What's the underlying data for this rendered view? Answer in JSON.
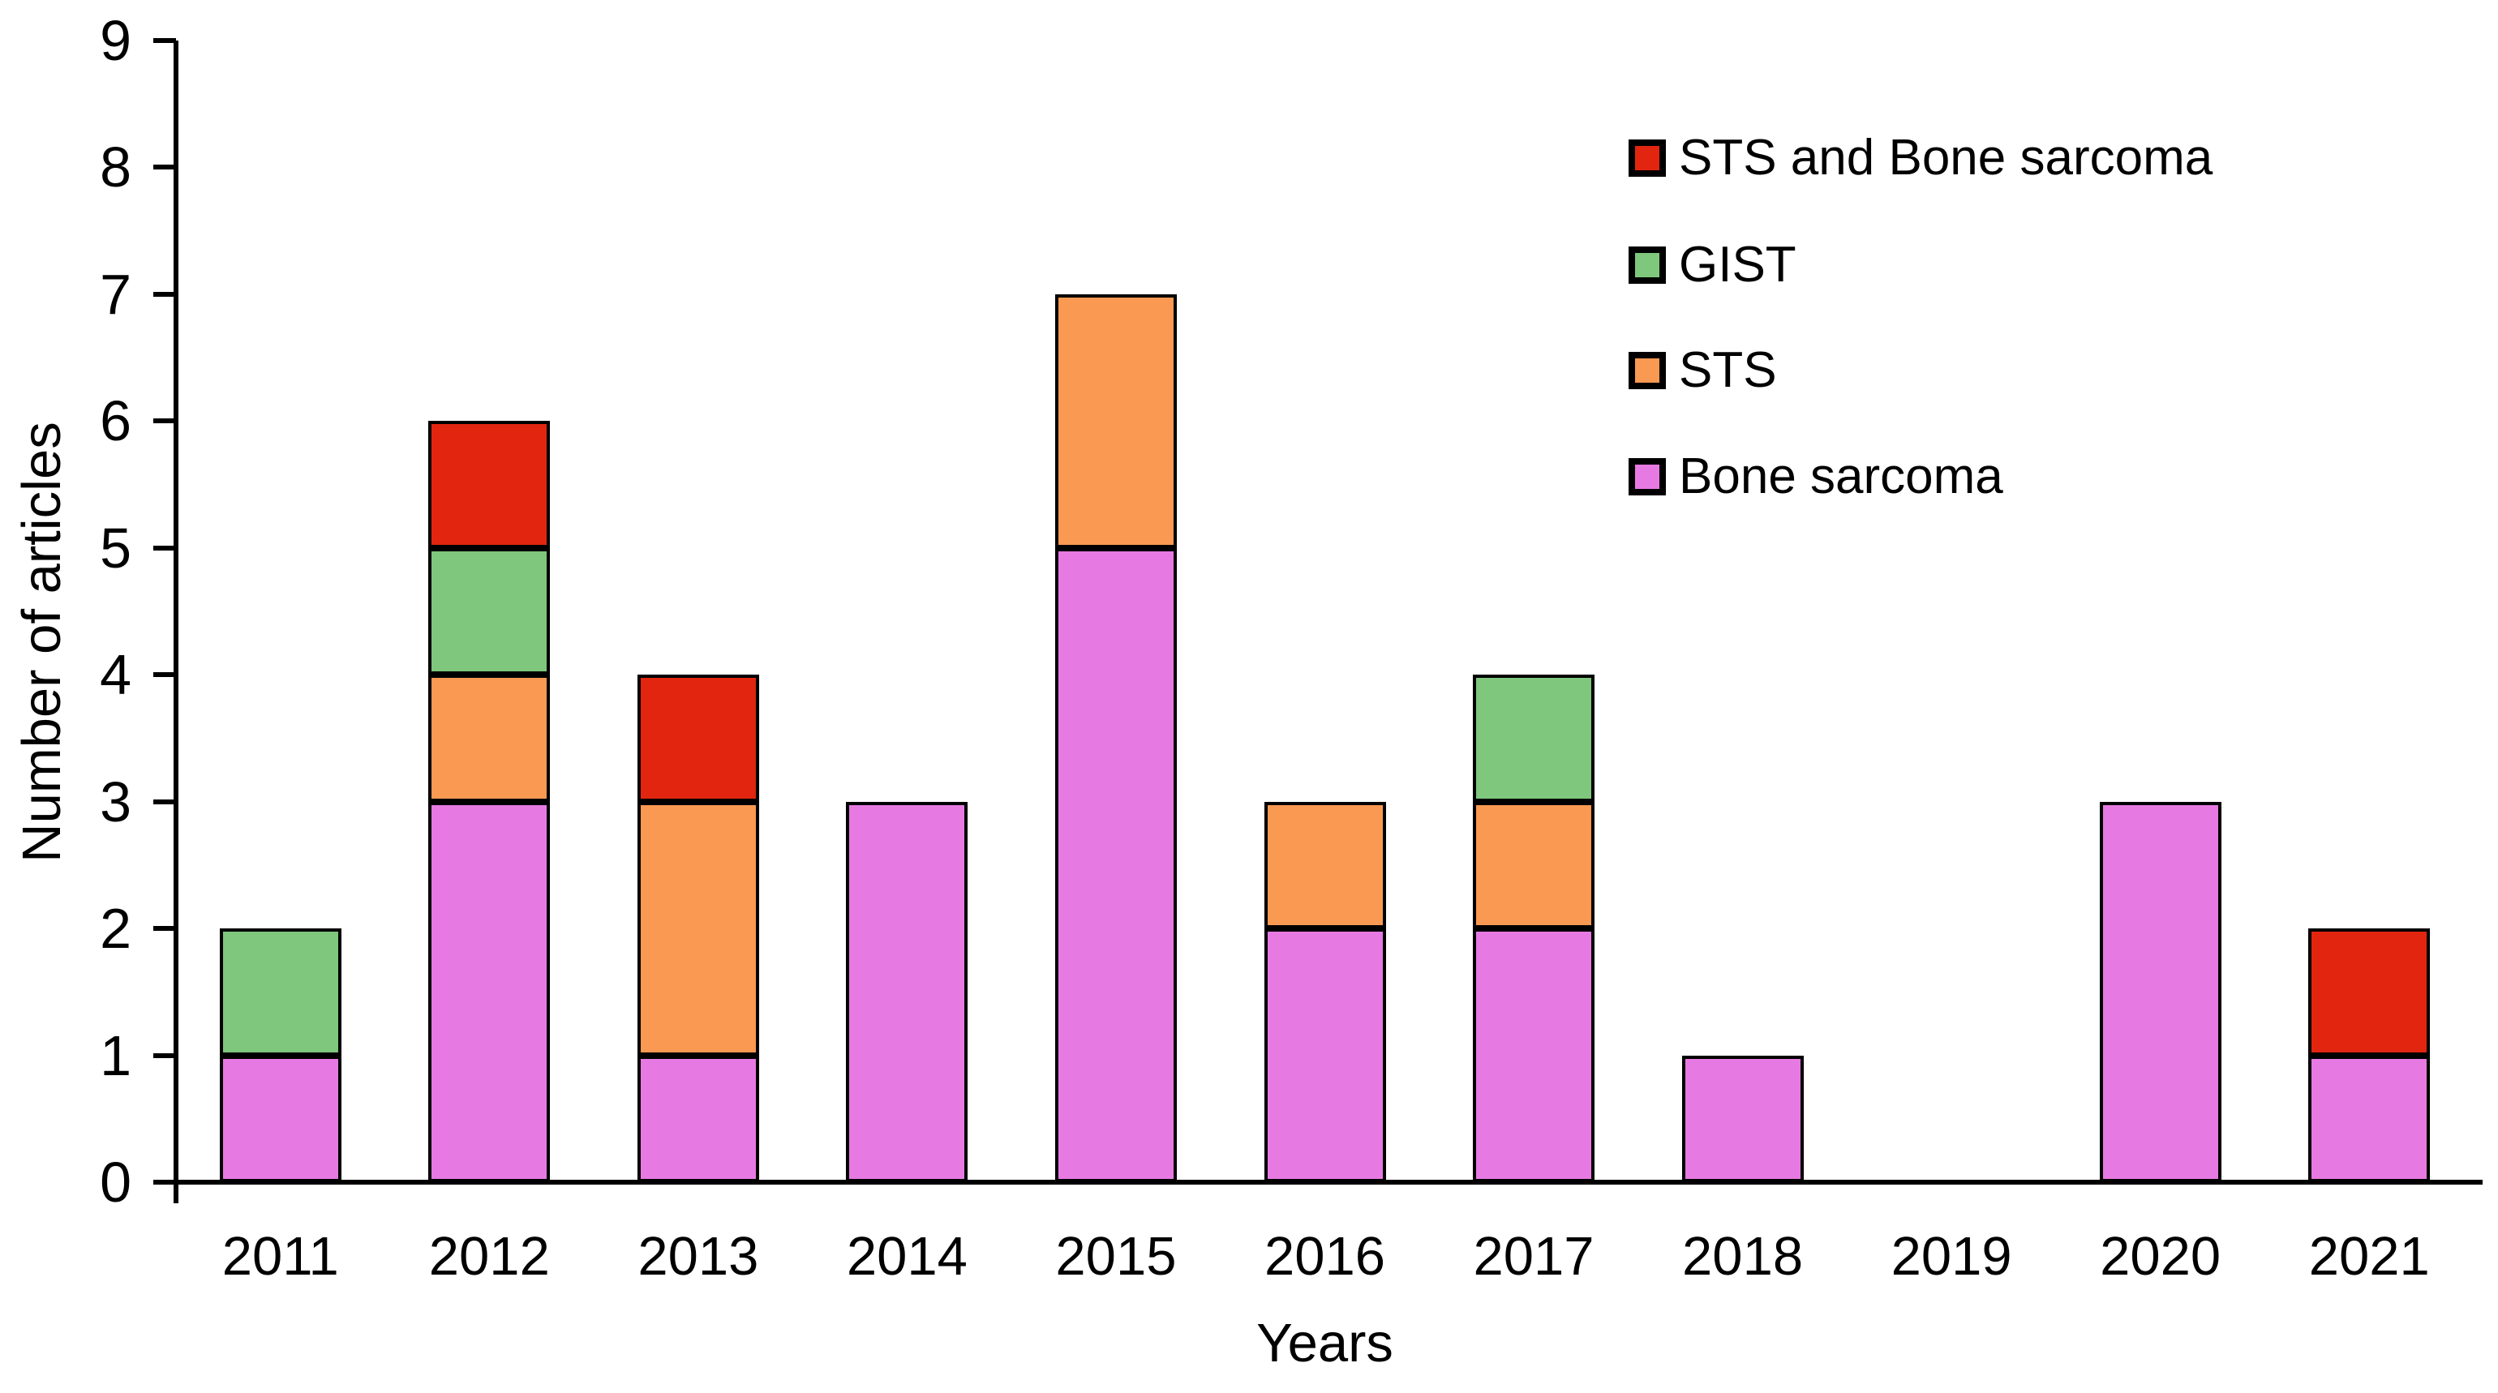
{
  "chart_data": {
    "type": "bar",
    "stacked": true,
    "title": "",
    "xlabel": "Years",
    "ylabel": "Number of articles",
    "categories": [
      "2011",
      "2012",
      "2013",
      "2014",
      "2015",
      "2016",
      "2017",
      "2018",
      "2019",
      "2020",
      "2021"
    ],
    "ylim": [
      0,
      9
    ],
    "y_ticks": [
      0,
      1,
      2,
      3,
      4,
      5,
      6,
      7,
      8,
      9
    ],
    "grid": false,
    "series": [
      {
        "name": "Bone sarcoma",
        "color": "#E67AE2",
        "values": [
          1,
          3,
          1,
          3,
          5,
          2,
          2,
          1,
          0,
          3,
          1
        ]
      },
      {
        "name": "STS",
        "color": "#FA9952",
        "values": [
          0,
          1,
          2,
          0,
          2,
          1,
          1,
          0,
          0,
          0,
          0
        ]
      },
      {
        "name": "GIST",
        "color": "#7EC77C",
        "values": [
          1,
          1,
          0,
          0,
          0,
          0,
          1,
          0,
          0,
          0,
          0
        ]
      },
      {
        "name": "STS and Bone sarcoma",
        "color": "#E2250F",
        "values": [
          0,
          1,
          1,
          0,
          0,
          0,
          0,
          0,
          0,
          0,
          1
        ]
      }
    ],
    "totals": [
      2,
      6,
      4,
      3,
      7,
      3,
      4,
      1,
      0,
      3,
      2
    ],
    "legend": {
      "position": "top-right",
      "order_top_to_bottom": [
        "STS and Bone sarcoma",
        "GIST",
        "STS",
        "Bone sarcoma"
      ]
    },
    "bar_border_color": "#000000",
    "axis_color": "#000000"
  }
}
